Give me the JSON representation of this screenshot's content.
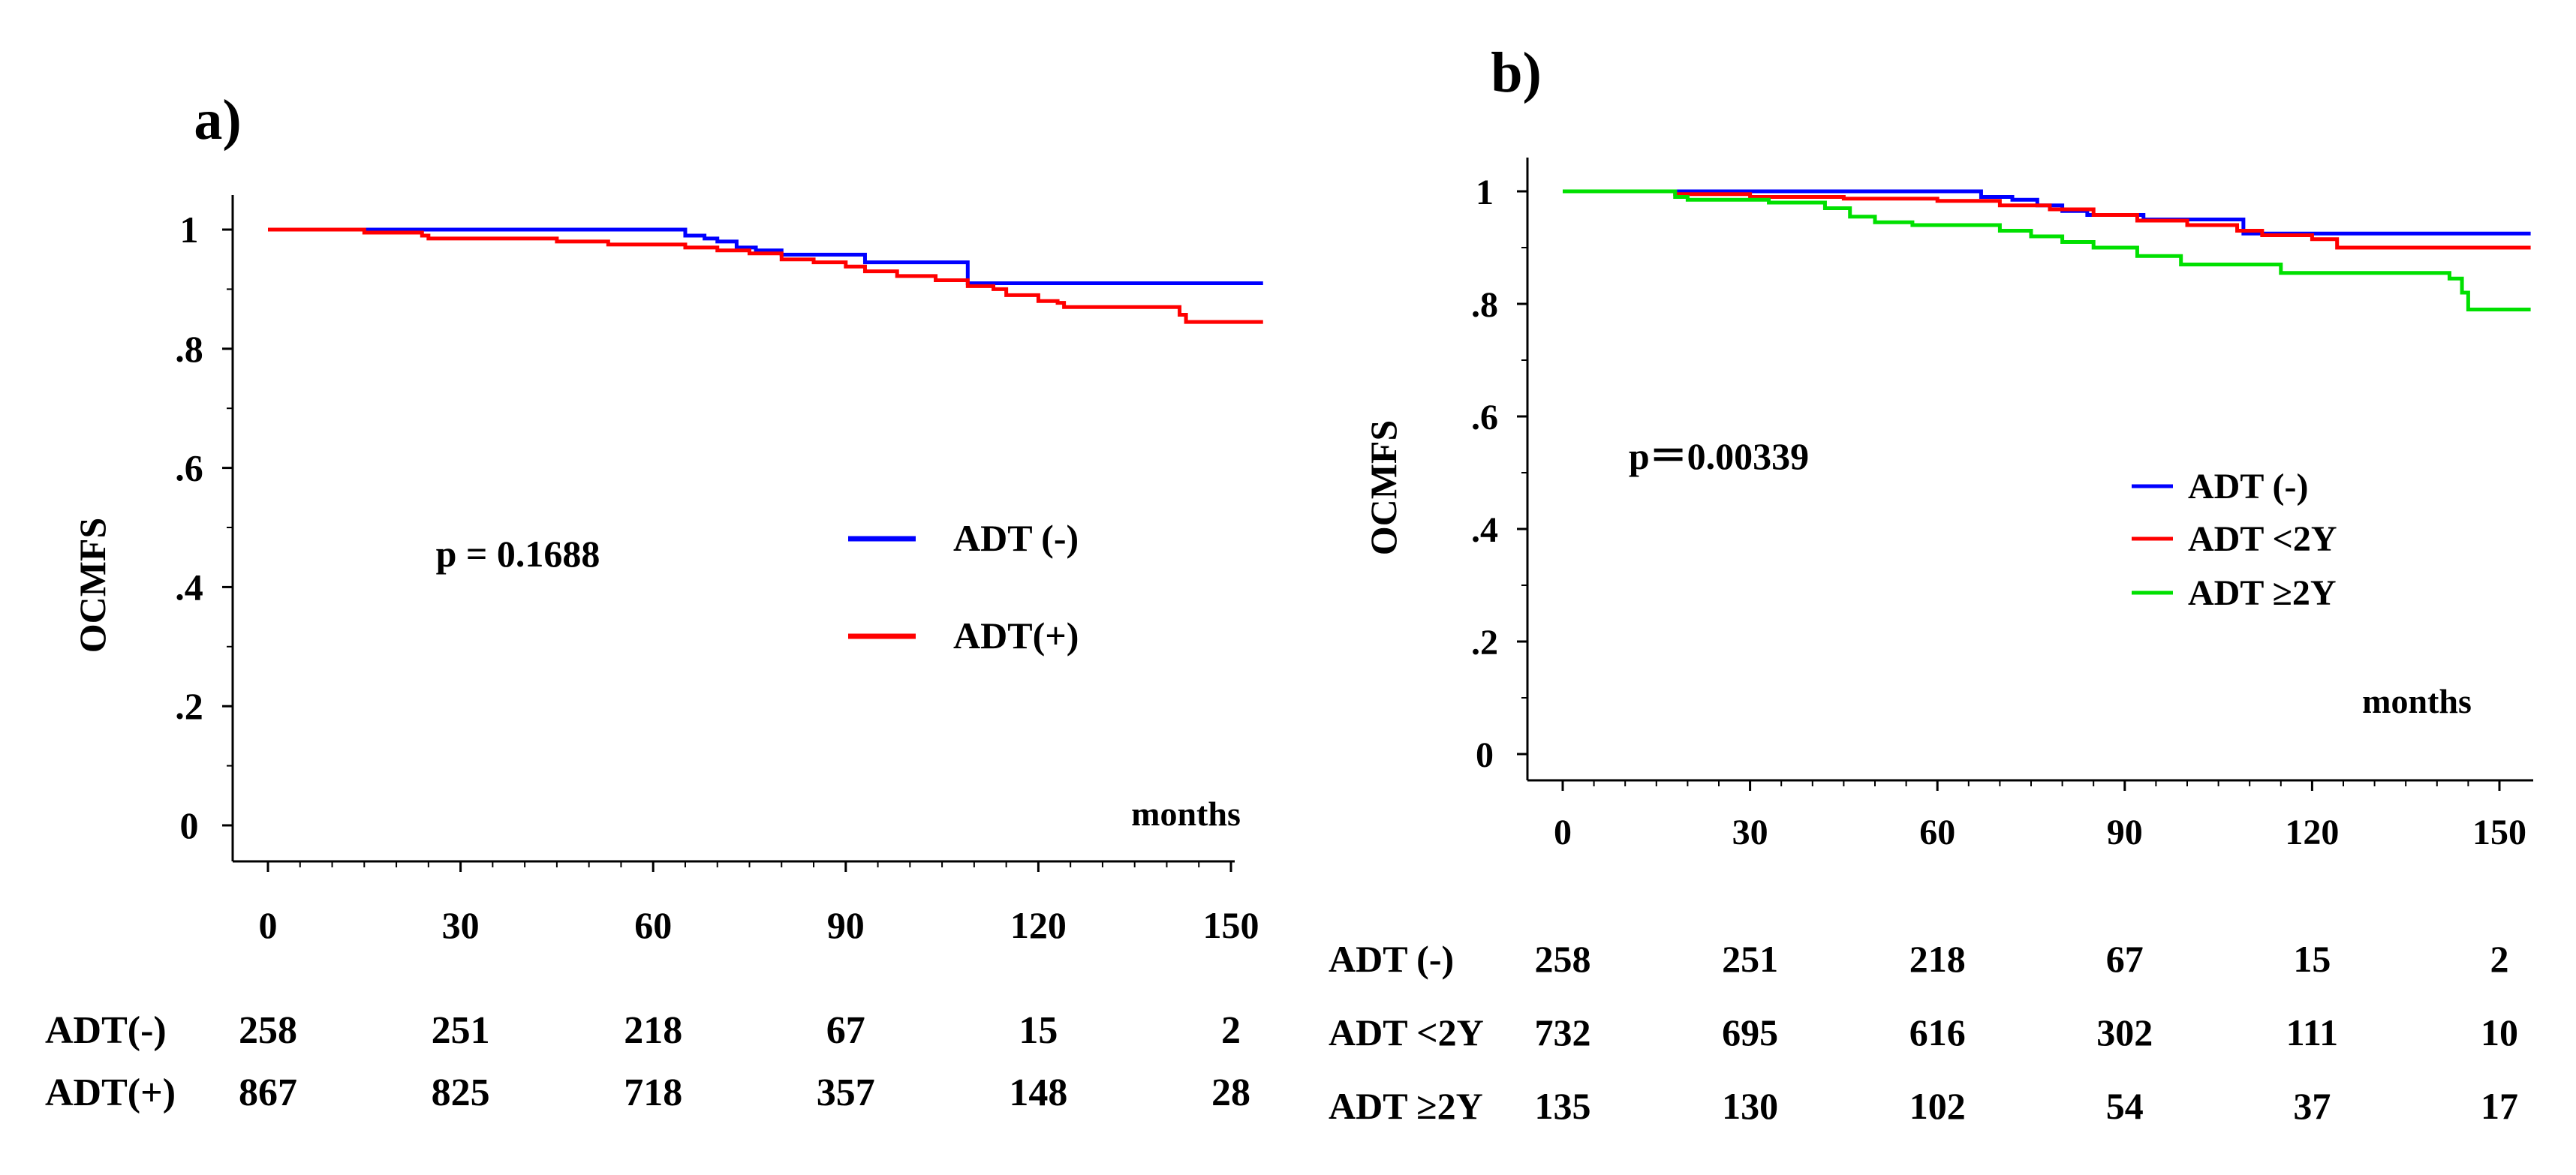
{
  "chart_data": [
    {
      "panel_label": "a)",
      "type": "line",
      "step": true,
      "title": "",
      "xlabel": "months",
      "ylabel": "OCMFS",
      "xlim": [
        0,
        155
      ],
      "ylim": [
        0,
        1
      ],
      "x_ticks": [
        0,
        30,
        60,
        90,
        120,
        150
      ],
      "x_tick_labels": [
        "0",
        "30",
        "60",
        "90",
        "120",
        "150"
      ],
      "y_ticks": [
        0,
        0.2,
        0.4,
        0.6,
        0.8,
        1
      ],
      "y_tick_labels": [
        "0",
        ".2",
        ".4",
        ".6",
        ".8",
        "1"
      ],
      "annotation": "p = 0.1688",
      "legend_position": "center-right",
      "series": [
        {
          "name": "ADT (-)",
          "color": "#0000ff",
          "points": [
            [
              0,
              1
            ],
            [
              64,
              1
            ],
            [
              65,
              0.99
            ],
            [
              68,
              0.985
            ],
            [
              70,
              0.98
            ],
            [
              73,
              0.97
            ],
            [
              76,
              0.965
            ],
            [
              80,
              0.958
            ],
            [
              93,
              0.945
            ],
            [
              108,
              0.945
            ],
            [
              109,
              0.91
            ],
            [
              155,
              0.91
            ]
          ]
        },
        {
          "name": "ADT(+)",
          "color": "#ff0000",
          "points": [
            [
              0,
              1
            ],
            [
              14,
              1
            ],
            [
              15,
              0.995
            ],
            [
              24,
              0.99
            ],
            [
              25,
              0.985
            ],
            [
              44,
              0.985
            ],
            [
              45,
              0.98
            ],
            [
              52,
              0.98
            ],
            [
              53,
              0.975
            ],
            [
              64,
              0.975
            ],
            [
              65,
              0.97
            ],
            [
              70,
              0.965
            ],
            [
              75,
              0.96
            ],
            [
              80,
              0.95
            ],
            [
              85,
              0.945
            ],
            [
              90,
              0.938
            ],
            [
              93,
              0.93
            ],
            [
              98,
              0.922
            ],
            [
              104,
              0.915
            ],
            [
              109,
              0.905
            ],
            [
              113,
              0.9
            ],
            [
              115,
              0.89
            ],
            [
              120,
              0.88
            ],
            [
              123,
              0.877
            ],
            [
              124,
              0.87
            ],
            [
              142,
              0.857
            ],
            [
              143,
              0.845
            ],
            [
              155,
              0.845
            ]
          ]
        }
      ],
      "risk_table": {
        "rows": [
          {
            "label": "ADT(-)",
            "values": [
              "258",
              "251",
              "218",
              "67",
              "15",
              "2"
            ]
          },
          {
            "label": "ADT(+)",
            "values": [
              "867",
              "825",
              "718",
              "357",
              "148",
              "28"
            ]
          }
        ]
      }
    },
    {
      "panel_label": "b)",
      "type": "line",
      "step": true,
      "title": "",
      "xlabel": "months",
      "ylabel": "OCMFS",
      "xlim": [
        0,
        155
      ],
      "ylim": [
        0,
        1
      ],
      "x_ticks": [
        0,
        30,
        60,
        90,
        120,
        150
      ],
      "x_tick_labels": [
        "0",
        "30",
        "60",
        "90",
        "120",
        "150"
      ],
      "y_ticks": [
        0,
        0.2,
        0.4,
        0.6,
        0.8,
        1
      ],
      "y_tick_labels": [
        "0",
        ".2",
        ".4",
        ".6",
        ".8",
        "1"
      ],
      "annotation": "p＝0.00339",
      "legend_position": "center-right",
      "series": [
        {
          "name": "ADT (-)",
          "color": "#0000ff",
          "points": [
            [
              0,
              1
            ],
            [
              64,
              1
            ],
            [
              67,
              0.99
            ],
            [
              72,
              0.985
            ],
            [
              76,
              0.975
            ],
            [
              80,
              0.965
            ],
            [
              84,
              0.958
            ],
            [
              93,
              0.95
            ],
            [
              108,
              0.95
            ],
            [
              109,
              0.925
            ],
            [
              155,
              0.925
            ]
          ]
        },
        {
          "name": "ADT <2Y",
          "color": "#ff0000",
          "points": [
            [
              0,
              1
            ],
            [
              14,
              1
            ],
            [
              18,
              0.995
            ],
            [
              30,
              0.99
            ],
            [
              45,
              0.987
            ],
            [
              60,
              0.983
            ],
            [
              70,
              0.975
            ],
            [
              78,
              0.968
            ],
            [
              85,
              0.958
            ],
            [
              92,
              0.948
            ],
            [
              100,
              0.94
            ],
            [
              108,
              0.93
            ],
            [
              112,
              0.922
            ],
            [
              120,
              0.915
            ],
            [
              124,
              0.9
            ],
            [
              155,
              0.9
            ]
          ]
        },
        {
          "name": "ADT ≥2Y",
          "color": "#00e000",
          "points": [
            [
              0,
              1
            ],
            [
              18,
              0.99
            ],
            [
              20,
              0.985
            ],
            [
              33,
              0.98
            ],
            [
              42,
              0.97
            ],
            [
              46,
              0.955
            ],
            [
              50,
              0.945
            ],
            [
              56,
              0.94
            ],
            [
              70,
              0.93
            ],
            [
              75,
              0.92
            ],
            [
              80,
              0.91
            ],
            [
              85,
              0.9
            ],
            [
              92,
              0.885
            ],
            [
              98,
              0.885
            ],
            [
              99,
              0.87
            ],
            [
              114,
              0.87
            ],
            [
              115,
              0.855
            ],
            [
              142,
              0.845
            ],
            [
              144,
              0.82
            ],
            [
              145,
              0.79
            ],
            [
              155,
              0.79
            ]
          ]
        }
      ],
      "risk_table": {
        "rows": [
          {
            "label": "ADT (-)",
            "values": [
              "258",
              "251",
              "218",
              "67",
              "15",
              "2"
            ]
          },
          {
            "label": "ADT <2Y",
            "values": [
              "732",
              "695",
              "616",
              "302",
              "111",
              "10"
            ]
          },
          {
            "label": "ADT ≥2Y",
            "values": [
              "135",
              "130",
              "102",
              "54",
              "37",
              "17"
            ]
          }
        ]
      }
    }
  ]
}
